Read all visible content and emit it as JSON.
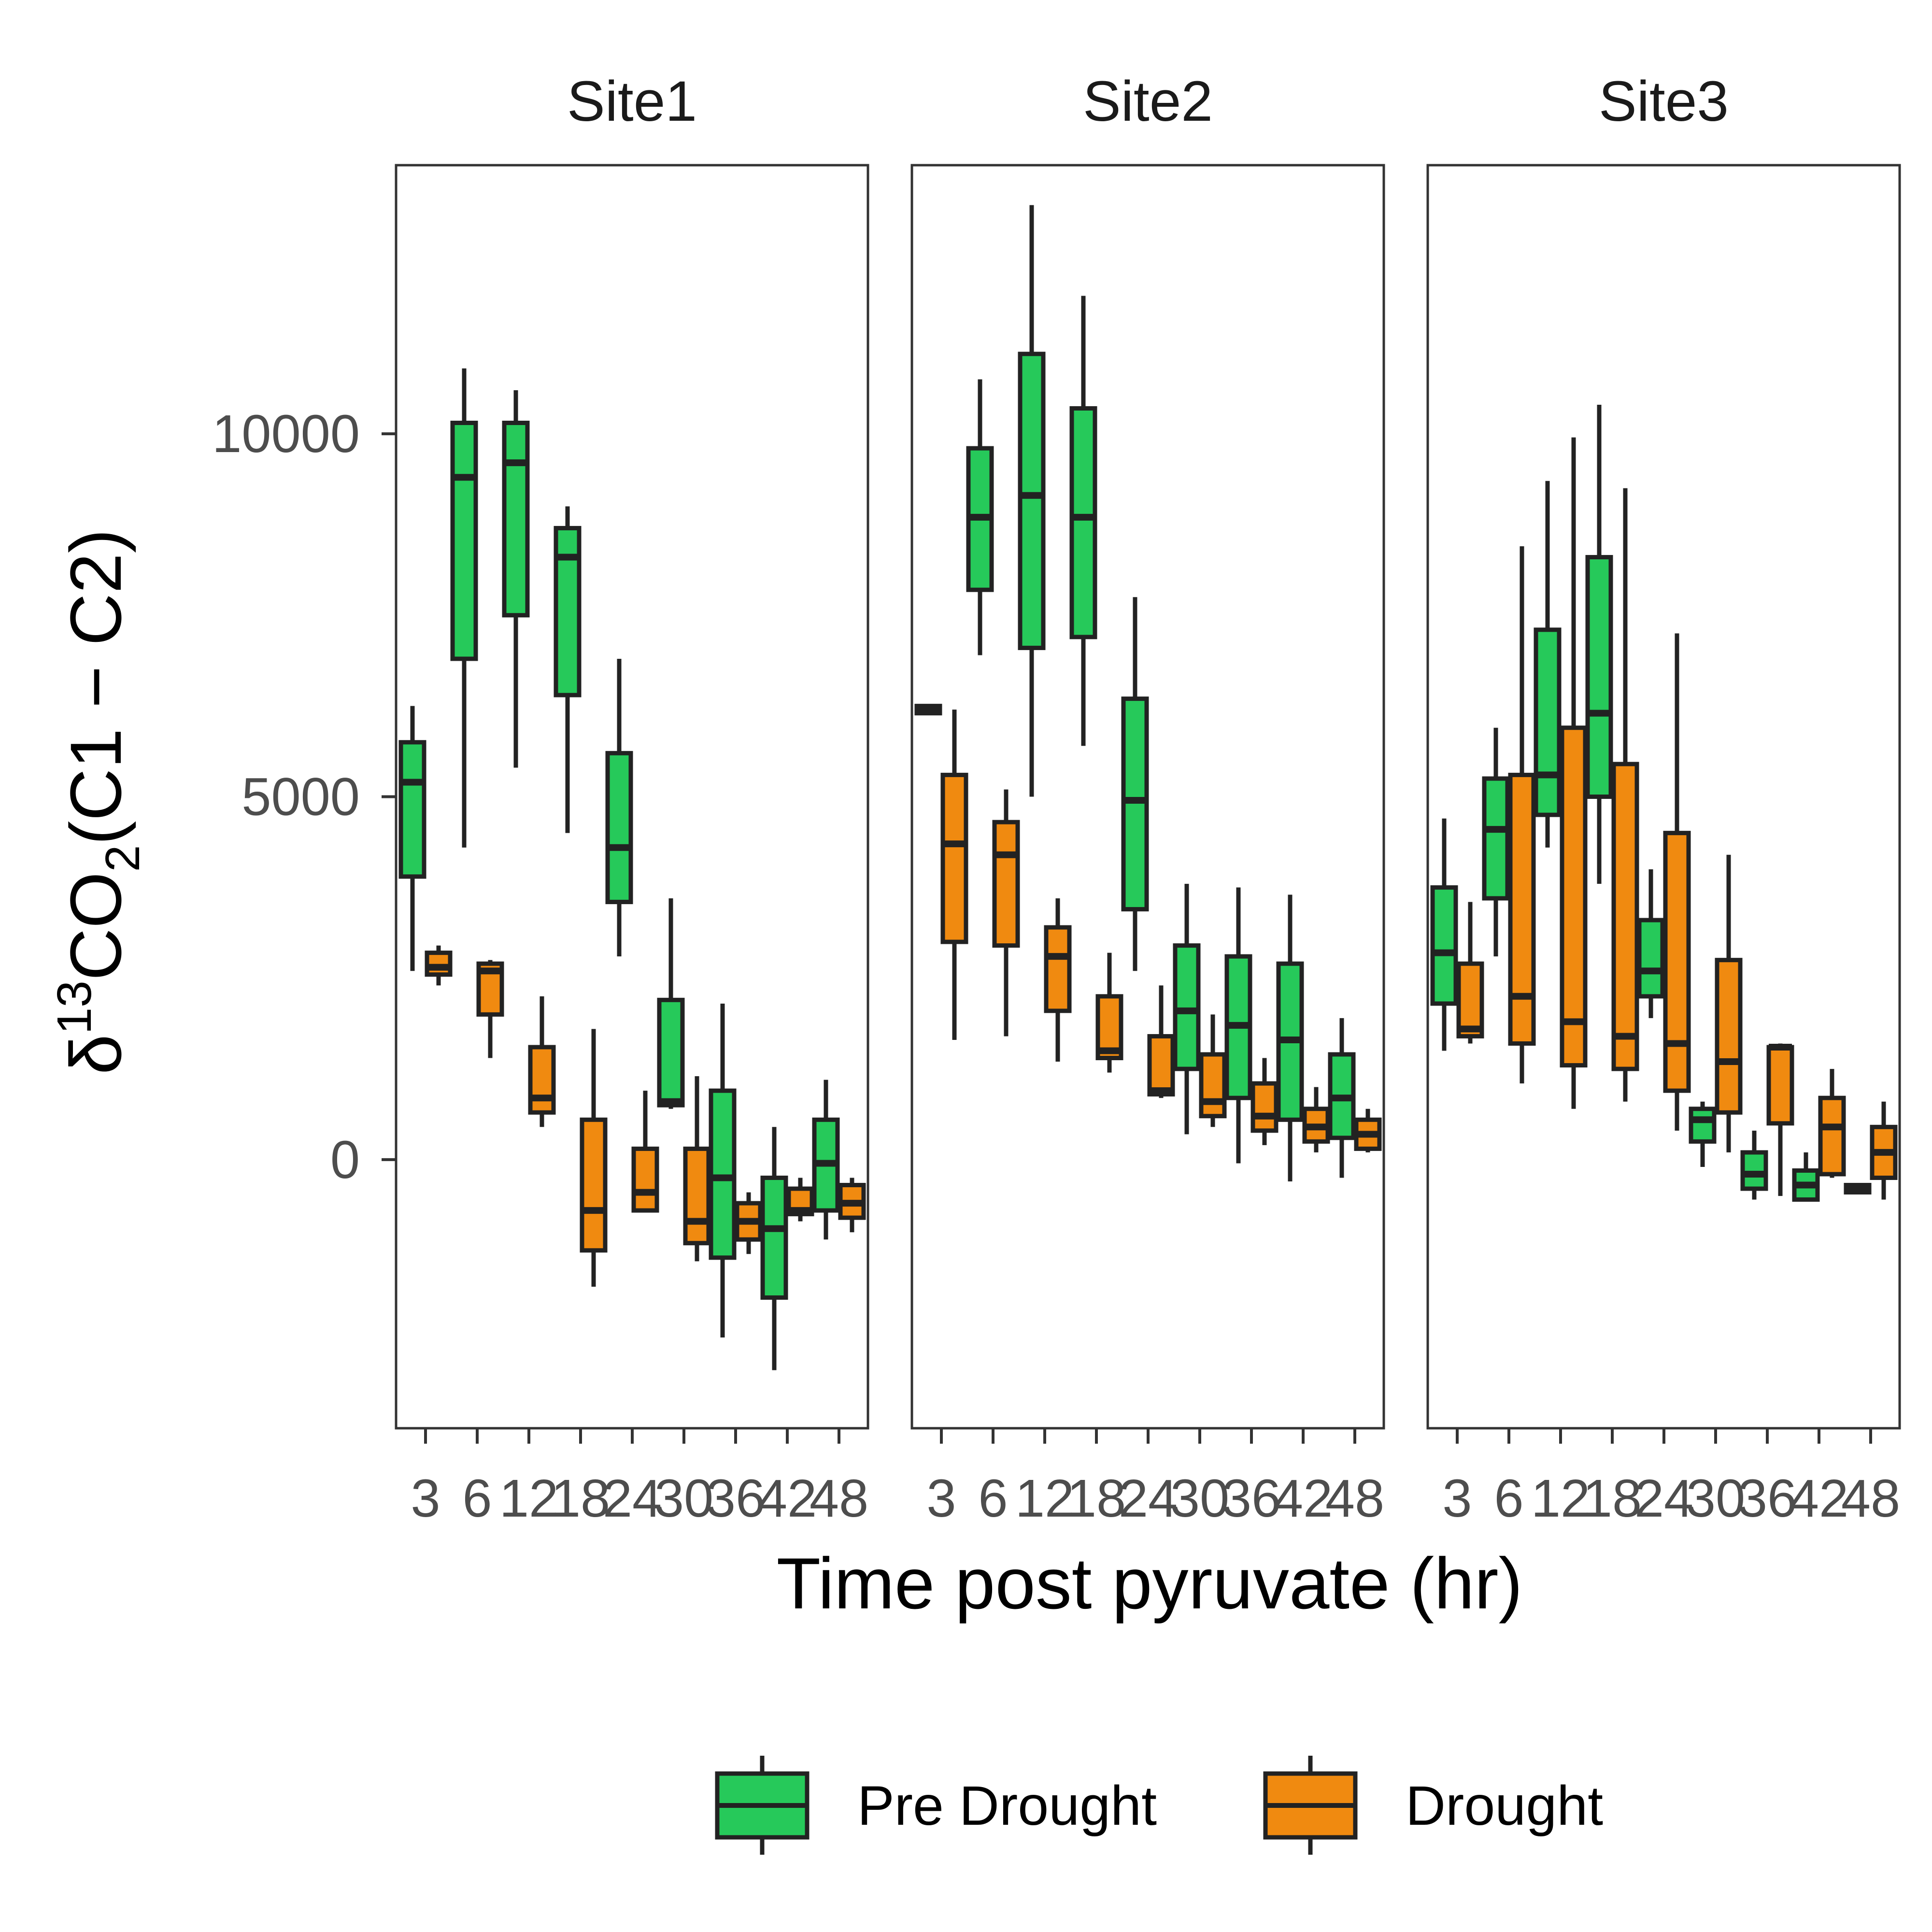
{
  "chart_data": {
    "type": "boxplot",
    "facets": [
      "Site1",
      "Site2",
      "Site3"
    ],
    "x_categories": [
      "3",
      "6",
      "12",
      "18",
      "24",
      "30",
      "36",
      "42",
      "48"
    ],
    "xlabel": "Time post pyruvate (hr)",
    "ylabel": {
      "delta": "δ",
      "sup": "13",
      "co": "CO",
      "sub": "2",
      "rest": "(C1 − C2)"
    },
    "yticks": [
      "0",
      "5000",
      "10000"
    ],
    "ylim": [
      -3700,
      13700
    ],
    "legend": {
      "position": "bottom",
      "entries": [
        "Pre Drought",
        "Drought"
      ]
    },
    "colors": {
      "Pre Drought": "#26c95a",
      "Drought": "#f08a10",
      "outline": "#222222"
    },
    "series": [
      {
        "name": "Pre Drought",
        "boxes": {
          "Site1": [
            {
              "x": "3",
              "min": 2600,
              "q1": 3900,
              "median": 5200,
              "q3": 5750,
              "max": 6250
            },
            {
              "x": "6",
              "min": 4300,
              "q1": 6900,
              "median": 9400,
              "q3": 10150,
              "max": 10900
            },
            {
              "x": "12",
              "min": 5400,
              "q1": 7500,
              "median": 9600,
              "q3": 10150,
              "max": 10600
            },
            {
              "x": "18",
              "min": 4500,
              "q1": 6400,
              "median": 8300,
              "q3": 8700,
              "max": 9000
            },
            {
              "x": "24",
              "min": 2800,
              "q1": 3550,
              "median": 4300,
              "q3": 5600,
              "max": 6900
            },
            {
              "x": "30",
              "min": 700,
              "q1": 750,
              "median": 800,
              "q3": 2200,
              "max": 3600
            },
            {
              "x": "36",
              "min": -2450,
              "q1": -1350,
              "median": -250,
              "q3": 950,
              "max": 2150
            },
            {
              "x": "42",
              "min": -2900,
              "q1": -1900,
              "median": -950,
              "q3": -250,
              "max": 450
            },
            {
              "x": "48",
              "min": -1100,
              "q1": -700,
              "median": -50,
              "q3": 550,
              "max": 1100
            }
          ],
          "Site2": [
            {
              "x": "3",
              "min": 6150,
              "q1": 6150,
              "median": 6200,
              "q3": 6250,
              "max": 6250
            },
            {
              "x": "6",
              "min": 6950,
              "q1": 7850,
              "median": 8850,
              "q3": 9800,
              "max": 10750
            },
            {
              "x": "12",
              "min": 5000,
              "q1": 7050,
              "median": 9150,
              "q3": 11100,
              "max": 13150
            },
            {
              "x": "18",
              "min": 5700,
              "q1": 7200,
              "median": 8850,
              "q3": 10350,
              "max": 11900
            },
            {
              "x": "24",
              "min": 2600,
              "q1": 3450,
              "median": 4950,
              "q3": 6350,
              "max": 7750
            },
            {
              "x": "30",
              "min": 350,
              "q1": 1250,
              "median": 2050,
              "q3": 2950,
              "max": 3800
            },
            {
              "x": "36",
              "min": -50,
              "q1": 850,
              "median": 1850,
              "q3": 2800,
              "max": 3750
            },
            {
              "x": "42",
              "min": -300,
              "q1": 550,
              "median": 1650,
              "q3": 2700,
              "max": 3650
            },
            {
              "x": "48",
              "min": -250,
              "q1": 300,
              "median": 850,
              "q3": 1450,
              "max": 1950
            }
          ],
          "Site3": [
            {
              "x": "3",
              "min": 1500,
              "q1": 2150,
              "median": 2850,
              "q3": 3750,
              "max": 4700
            },
            {
              "x": "6",
              "min": 2800,
              "q1": 3600,
              "median": 4550,
              "q3": 5250,
              "max": 5950
            },
            {
              "x": "12",
              "min": 4300,
              "q1": 4750,
              "median": 5300,
              "q3": 7300,
              "max": 9350
            },
            {
              "x": "18",
              "min": 3800,
              "q1": 5000,
              "median": 6150,
              "q3": 8300,
              "max": 10400
            },
            {
              "x": "24",
              "min": 1950,
              "q1": 2250,
              "median": 2600,
              "q3": 3300,
              "max": 4000
            },
            {
              "x": "30",
              "min": -100,
              "q1": 250,
              "median": 550,
              "q3": 700,
              "max": 800
            },
            {
              "x": "36",
              "min": -550,
              "q1": -400,
              "median": -200,
              "q3": 100,
              "max": 400
            },
            {
              "x": "42",
              "min": -550,
              "q1": -550,
              "median": -350,
              "q3": -150,
              "max": 100
            },
            {
              "x": "48",
              "min": -450,
              "q1": -450,
              "median": -400,
              "q3": -350,
              "max": -350
            }
          ]
        }
      },
      {
        "name": "Drought",
        "boxes": {
          "Site1": [
            {
              "x": "3",
              "min": 2400,
              "q1": 2550,
              "median": 2650,
              "q3": 2850,
              "max": 2950
            },
            {
              "x": "6",
              "min": 1400,
              "q1": 2000,
              "median": 2600,
              "q3": 2700,
              "max": 2750
            },
            {
              "x": "12",
              "min": 450,
              "q1": 650,
              "median": 850,
              "q3": 1550,
              "max": 2250
            },
            {
              "x": "18",
              "min": -1750,
              "q1": -1250,
              "median": -700,
              "q3": 550,
              "max": 1800
            },
            {
              "x": "24",
              "min": -700,
              "q1": -700,
              "median": -450,
              "q3": 150,
              "max": 950
            },
            {
              "x": "30",
              "min": -1400,
              "q1": -1150,
              "median": -850,
              "q3": 150,
              "max": 1150
            },
            {
              "x": "36",
              "min": -1300,
              "q1": -1100,
              "median": -850,
              "q3": -600,
              "max": -450
            },
            {
              "x": "42",
              "min": -850,
              "q1": -750,
              "median": -700,
              "q3": -400,
              "max": -250
            },
            {
              "x": "48",
              "min": -1000,
              "q1": -800,
              "median": -600,
              "q3": -350,
              "max": -250
            }
          ],
          "Site2": [
            {
              "x": "3",
              "min": 1650,
              "q1": 3000,
              "median": 4350,
              "q3": 5300,
              "max": 6200
            },
            {
              "x": "6",
              "min": 1700,
              "q1": 2950,
              "median": 4200,
              "q3": 4650,
              "max": 5100
            },
            {
              "x": "12",
              "min": 1350,
              "q1": 2050,
              "median": 2800,
              "q3": 3200,
              "max": 3600
            },
            {
              "x": "18",
              "min": 1200,
              "q1": 1400,
              "median": 1500,
              "q3": 2250,
              "max": 2850
            },
            {
              "x": "24",
              "min": 850,
              "q1": 900,
              "median": 950,
              "q3": 1700,
              "max": 2400
            },
            {
              "x": "30",
              "min": 450,
              "q1": 600,
              "median": 800,
              "q3": 1450,
              "max": 2000
            },
            {
              "x": "36",
              "min": 200,
              "q1": 400,
              "median": 600,
              "q3": 1050,
              "max": 1400
            },
            {
              "x": "42",
              "min": 100,
              "q1": 250,
              "median": 450,
              "q3": 700,
              "max": 1000
            },
            {
              "x": "48",
              "min": 100,
              "q1": 150,
              "median": 350,
              "q3": 550,
              "max": 700
            }
          ],
          "Site3": [
            {
              "x": "3",
              "min": 1600,
              "q1": 1700,
              "median": 1800,
              "q3": 2700,
              "max": 3550
            },
            {
              "x": "6",
              "min": 1050,
              "q1": 1600,
              "median": 2250,
              "q3": 5300,
              "max": 8450
            },
            {
              "x": "12",
              "min": 700,
              "q1": 1300,
              "median": 1900,
              "q3": 5950,
              "max": 9950
            },
            {
              "x": "18",
              "min": 800,
              "q1": 1250,
              "median": 1700,
              "q3": 5450,
              "max": 9250
            },
            {
              "x": "24",
              "min": 400,
              "q1": 950,
              "median": 1600,
              "q3": 4500,
              "max": 7250
            },
            {
              "x": "30",
              "min": 100,
              "q1": 650,
              "median": 1350,
              "q3": 2750,
              "max": 4200
            },
            {
              "x": "36",
              "min": -500,
              "q1": 500,
              "median": 1550,
              "q3": 1550,
              "max": 1600
            },
            {
              "x": "42",
              "min": -250,
              "q1": -200,
              "median": 450,
              "q3": 850,
              "max": 1250
            },
            {
              "x": "48",
              "min": -550,
              "q1": -250,
              "median": 100,
              "q3": 450,
              "max": 800
            }
          ]
        }
      }
    ]
  }
}
